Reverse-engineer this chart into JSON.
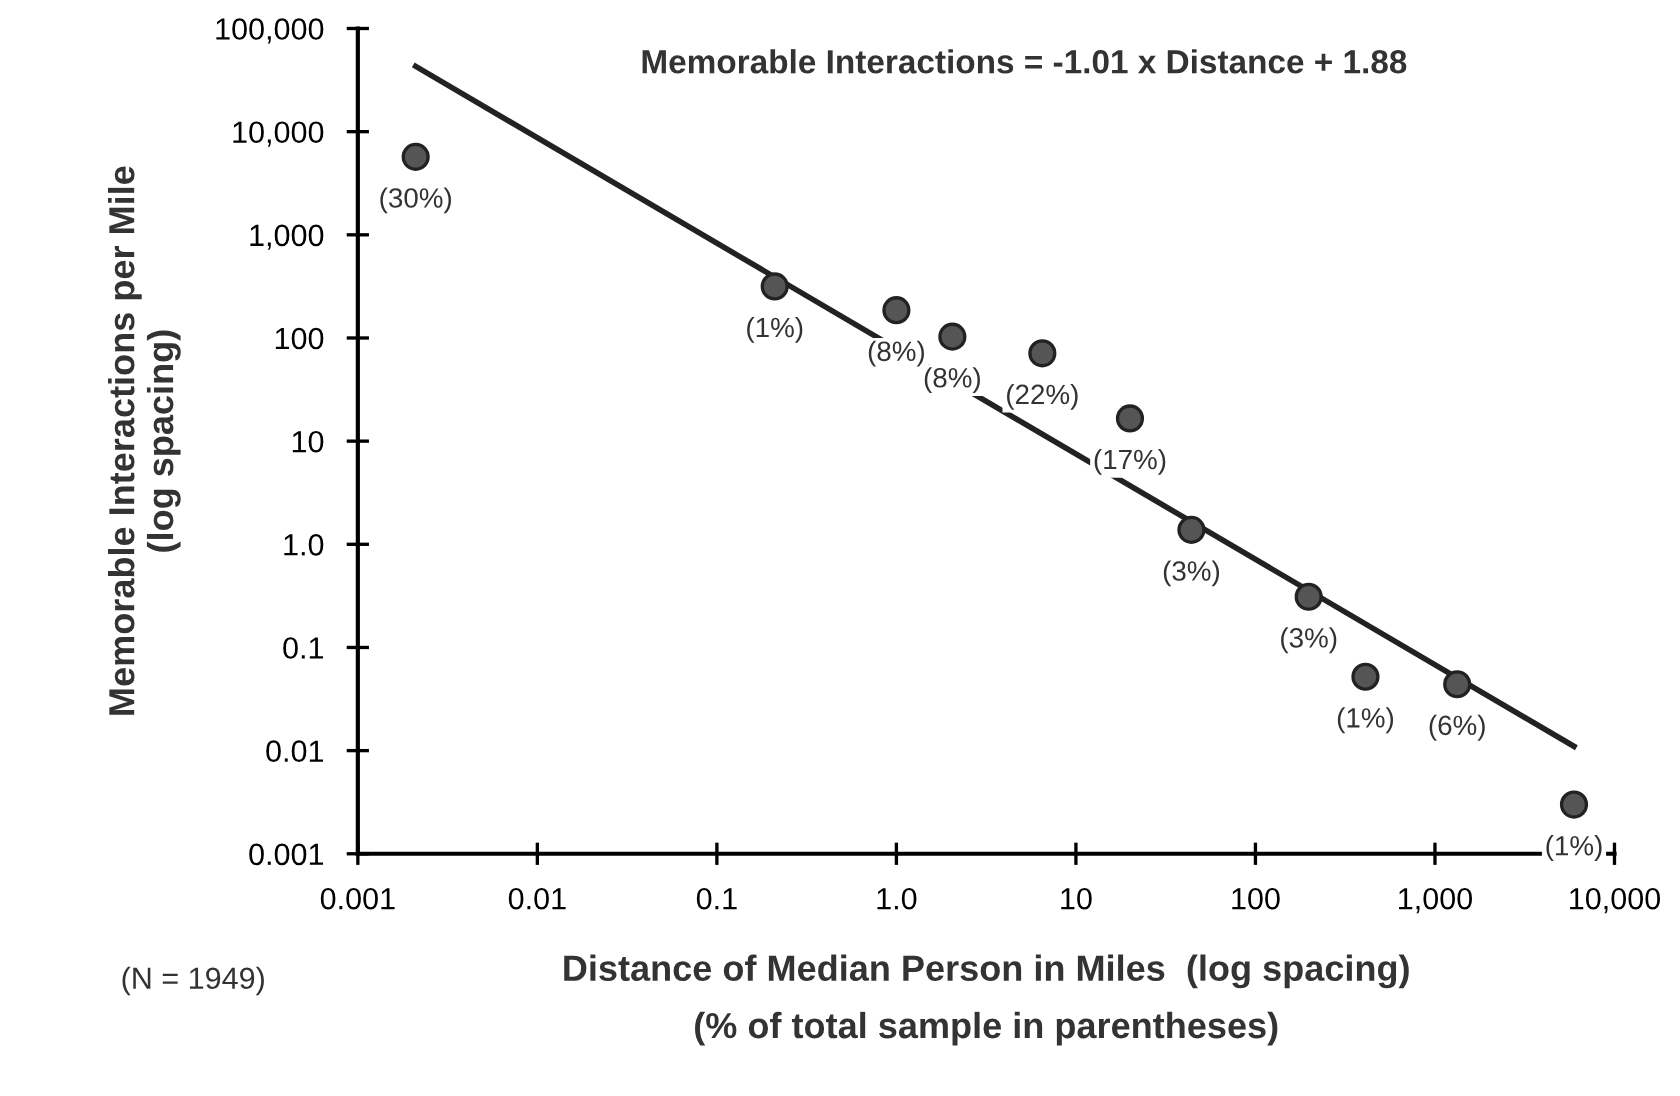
{
  "chart_data": {
    "type": "scatter",
    "xlabel": "Distance of Median Person in Miles  (log spacing)\n(% of total sample in parentheses)",
    "ylabel": "Memorable Interactions per Mile\n(log spacing)",
    "annotations": [
      "Memorable Interactions = -1.01 x Distance + 1.88",
      "(N = 1949)",
      {
        "text": "(30%)",
        "x": 0.0021,
        "y": 5700
      },
      {
        "text": "(1%)",
        "x": 0.21,
        "y": 316
      },
      {
        "text": "(8%)",
        "x": 1.0,
        "y": 186
      },
      {
        "text": "(8%)",
        "x": 2.05,
        "y": 103
      },
      {
        "text": "(22%)",
        "x": 6.5,
        "y": 71
      },
      {
        "text": "(17%)",
        "x": 20,
        "y": 16.6
      },
      {
        "text": "(3%)",
        "x": 44,
        "y": 1.38
      },
      {
        "text": "(3%)",
        "x": 198,
        "y": 0.31
      },
      {
        "text": "(1%)",
        "x": 410,
        "y": 0.052
      },
      {
        "text": "(6%)",
        "x": 1330,
        "y": 0.044
      },
      {
        "text": "(1%)",
        "x": 5950,
        "y": 0.003
      }
    ],
    "log": "xy",
    "grid": false,
    "xlim": [
      0.001,
      10000
    ],
    "ylim": [
      0.001,
      100000
    ],
    "xticks": [
      0.001,
      0.01,
      0.1,
      {
        "value": 1,
        "label": "1.0"
      },
      10,
      100,
      {
        "value": 1000,
        "label": "1,000"
      },
      {
        "value": 10000,
        "label": "10,000"
      }
    ],
    "yticks": [
      0.001,
      0.01,
      0.1,
      {
        "value": 1,
        "label": "1.0"
      },
      10,
      100,
      {
        "value": 1000,
        "label": "1,000"
      },
      {
        "value": 10000,
        "label": "10,000"
      },
      {
        "value": 100000,
        "label": "100,000"
      }
    ],
    "series": [
      {
        "color": "#555555",
        "marker": "circle",
        "x": [
          0.0021,
          0.21,
          1.0,
          2.05,
          6.5,
          20,
          44,
          198,
          410,
          1330,
          5950
        ],
        "values": [
          5700,
          316,
          186,
          103,
          71,
          16.6,
          1.38,
          0.31,
          0.052,
          0.044,
          0.003
        ]
      },
      {
        "type": "line",
        "color": "#222222",
        "x": [
          0.0021,
          5950
        ],
        "values": [
          43000,
          0.011
        ],
        "line_style": "solid"
      }
    ]
  }
}
